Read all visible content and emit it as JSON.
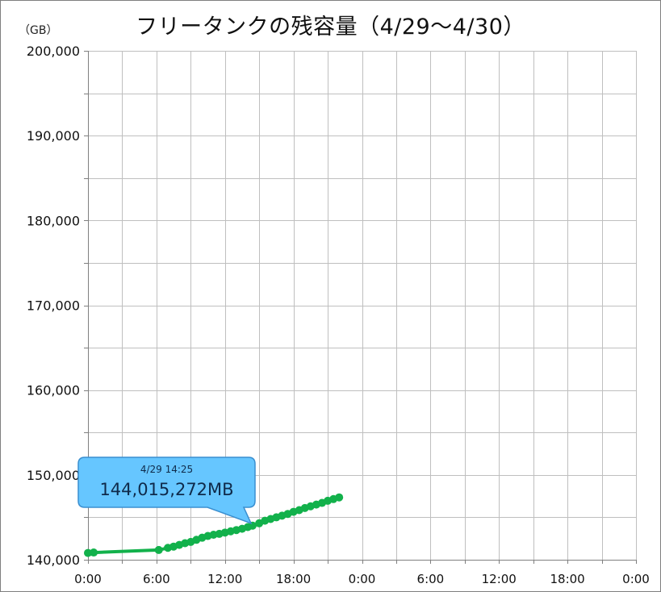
{
  "chart_data": {
    "type": "line",
    "title": "フリータンクの残容量（4/29〜4/30）",
    "ylabel": "（GB）",
    "ylim": [
      140000,
      200000
    ],
    "y_ticks": [
      "140,000",
      "150,000",
      "160,000",
      "170,000",
      "180,000",
      "190,000",
      "200,000"
    ],
    "x_ticks": [
      "0:00",
      "6:00",
      "12:00",
      "18:00",
      "0:00",
      "6:00",
      "12:00",
      "18:00",
      "0:00"
    ],
    "xlim_hours": [
      0,
      48
    ],
    "grid": true,
    "series": [
      {
        "color": "#12b14b",
        "x_hours": [
          0,
          0.5,
          6.2,
          7.0,
          7.5,
          8.0,
          8.5,
          9.0,
          9.5,
          10.0,
          10.5,
          11.0,
          11.5,
          12.0,
          12.5,
          13.0,
          13.5,
          14.0,
          14.42,
          15.0,
          15.5,
          16.0,
          16.5,
          17.0,
          17.5,
          18.0,
          18.5,
          19.0,
          19.5,
          20.0,
          20.5,
          21.0,
          21.5,
          22.0
        ],
        "values": [
          140800,
          140850,
          141150,
          141400,
          141550,
          141750,
          141950,
          142100,
          142350,
          142600,
          142800,
          142950,
          143050,
          143200,
          143350,
          143500,
          143650,
          143850,
          144015,
          144300,
          144600,
          144800,
          145000,
          145200,
          145400,
          145650,
          145850,
          146100,
          146300,
          146500,
          146700,
          146950,
          147150,
          147350
        ]
      }
    ],
    "callout": {
      "date": "4/29 14:25",
      "value": "144,015,272MB",
      "x_hours": 14.42,
      "y": 144015
    }
  }
}
